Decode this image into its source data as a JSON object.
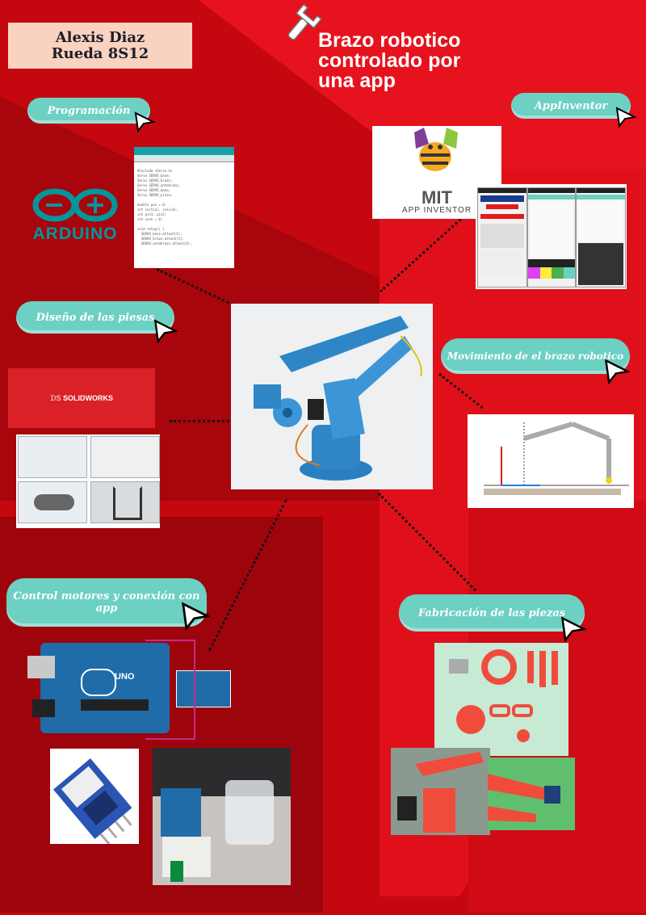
{
  "author": {
    "line1": "Alexis Diaz",
    "line2": "Rueda 8S12"
  },
  "title": {
    "line1": "Brazo robotico",
    "line2": "controlado por",
    "line3": "una app"
  },
  "sections": {
    "programming": "Programación",
    "appinventor": "AppInventor",
    "design": "Diseño de las piesas",
    "movement": "Movimiento de el brazo robotico",
    "control": "Control motores y conexión con app",
    "fabrication": "Fabricación de las piezas"
  },
  "logos": {
    "arduino": "ARDUINO",
    "mit": "MIT",
    "app_inventor": "APP INVENTOR",
    "solidworks": "SOLIDWORKS",
    "uno": "UNO"
  },
  "colors": {
    "background": "#b8060f",
    "accent": "#6cd0c3",
    "namebox": "#f9d3bf",
    "arduino": "#00979c"
  },
  "icons": {
    "wrench": "wrench-icon",
    "cursor": "cursor-arrow-icon"
  }
}
